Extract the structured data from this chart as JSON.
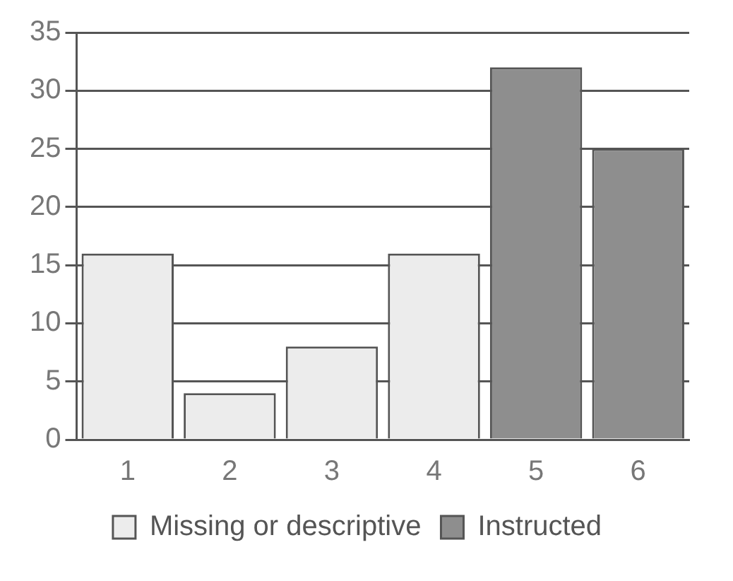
{
  "chart_data": {
    "type": "bar",
    "categories": [
      "1",
      "2",
      "3",
      "4",
      "5",
      "6"
    ],
    "series": [
      {
        "name": "Missing or descriptive",
        "color": "#ececec",
        "values": [
          16,
          4,
          8,
          16,
          null,
          null
        ]
      },
      {
        "name": "Instructed",
        "color": "#8e8e8e",
        "values": [
          null,
          null,
          null,
          null,
          32,
          25
        ]
      }
    ],
    "ylim": [
      0,
      35
    ],
    "yticks": [
      0,
      5,
      10,
      15,
      20,
      25,
      30,
      35
    ],
    "grid": "y",
    "legend": "bottom"
  }
}
